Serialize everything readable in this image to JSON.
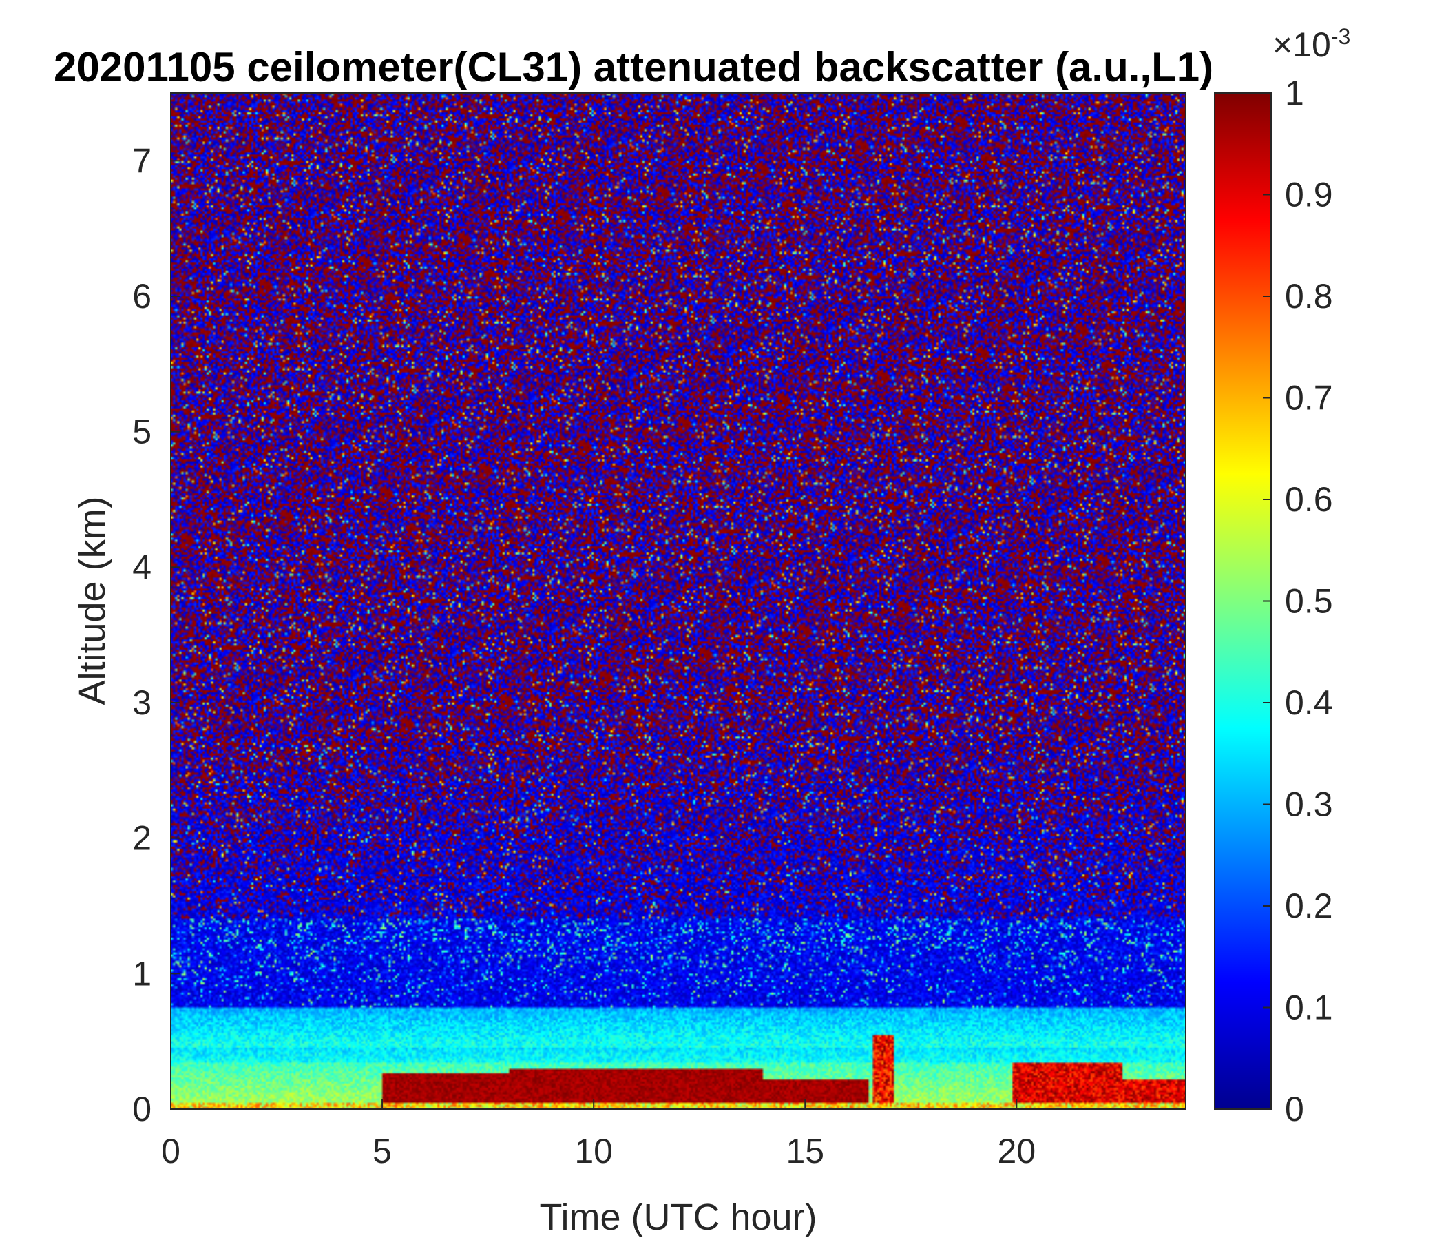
{
  "chart_data": {
    "type": "heatmap",
    "title": "20201105 ceilometer(CL31) attenuated backscatter (a.u.,L1)",
    "xlabel": "Time (UTC hour)",
    "ylabel": "Altitude (km)",
    "xlim": [
      0,
      24
    ],
    "ylim": [
      0,
      7.5
    ],
    "x_ticks": [
      0,
      5,
      10,
      15,
      20
    ],
    "y_ticks": [
      0,
      1,
      2,
      3,
      4,
      5,
      6,
      7
    ],
    "colorbar": {
      "range": [
        0,
        1
      ],
      "ticks": [
        0,
        0.1,
        0.2,
        0.3,
        0.4,
        0.5,
        0.6,
        0.7,
        0.8,
        0.9,
        1
      ],
      "ticks_text": [
        "0",
        "0.1",
        "0.2",
        "0.3",
        "0.4",
        "0.5",
        "0.6",
        "0.7",
        "0.8",
        "0.9",
        "1"
      ],
      "exponent_label": "×10",
      "exponent": "-3",
      "colormap": "jet"
    },
    "features": [
      {
        "name": "surface aerosol layer",
        "x_range": [
          0,
          24
        ],
        "altitude_top_km": 0.75,
        "value_level": 0.55
      },
      {
        "name": "strong near-surface layer",
        "x_range": [
          5,
          16.5
        ],
        "altitude_top_km": 0.3,
        "value_level": 1.0
      },
      {
        "name": "plume",
        "x_range": [
          16.6,
          17.1
        ],
        "altitude_top_km": 0.55,
        "value_level": 0.9
      },
      {
        "name": "evening surface layer",
        "x_range": [
          19.9,
          24
        ],
        "altitude_top_km": 0.5,
        "value_level": 0.95
      },
      {
        "name": "noisy background above 1.5 km",
        "altitude_range_km": [
          1.5,
          7.5
        ],
        "value_level": "mixed 0 / 1"
      }
    ]
  }
}
